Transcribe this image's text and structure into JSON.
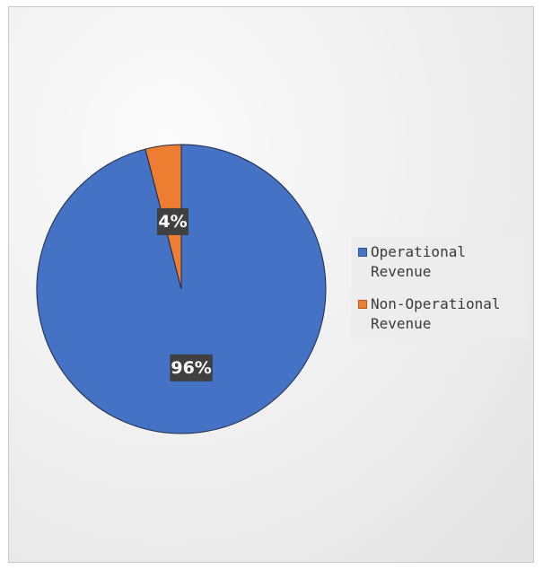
{
  "chart_data": {
    "type": "pie",
    "slices": [
      {
        "label": "Operational\nRevenue",
        "value": 96,
        "display": "96%",
        "color": "#4472c4"
      },
      {
        "label": "Non-Operational\nRevenue",
        "value": 4,
        "display": "4%",
        "color": "#ed7d31"
      }
    ],
    "legend": "right",
    "data_label_bg": "#404040"
  }
}
